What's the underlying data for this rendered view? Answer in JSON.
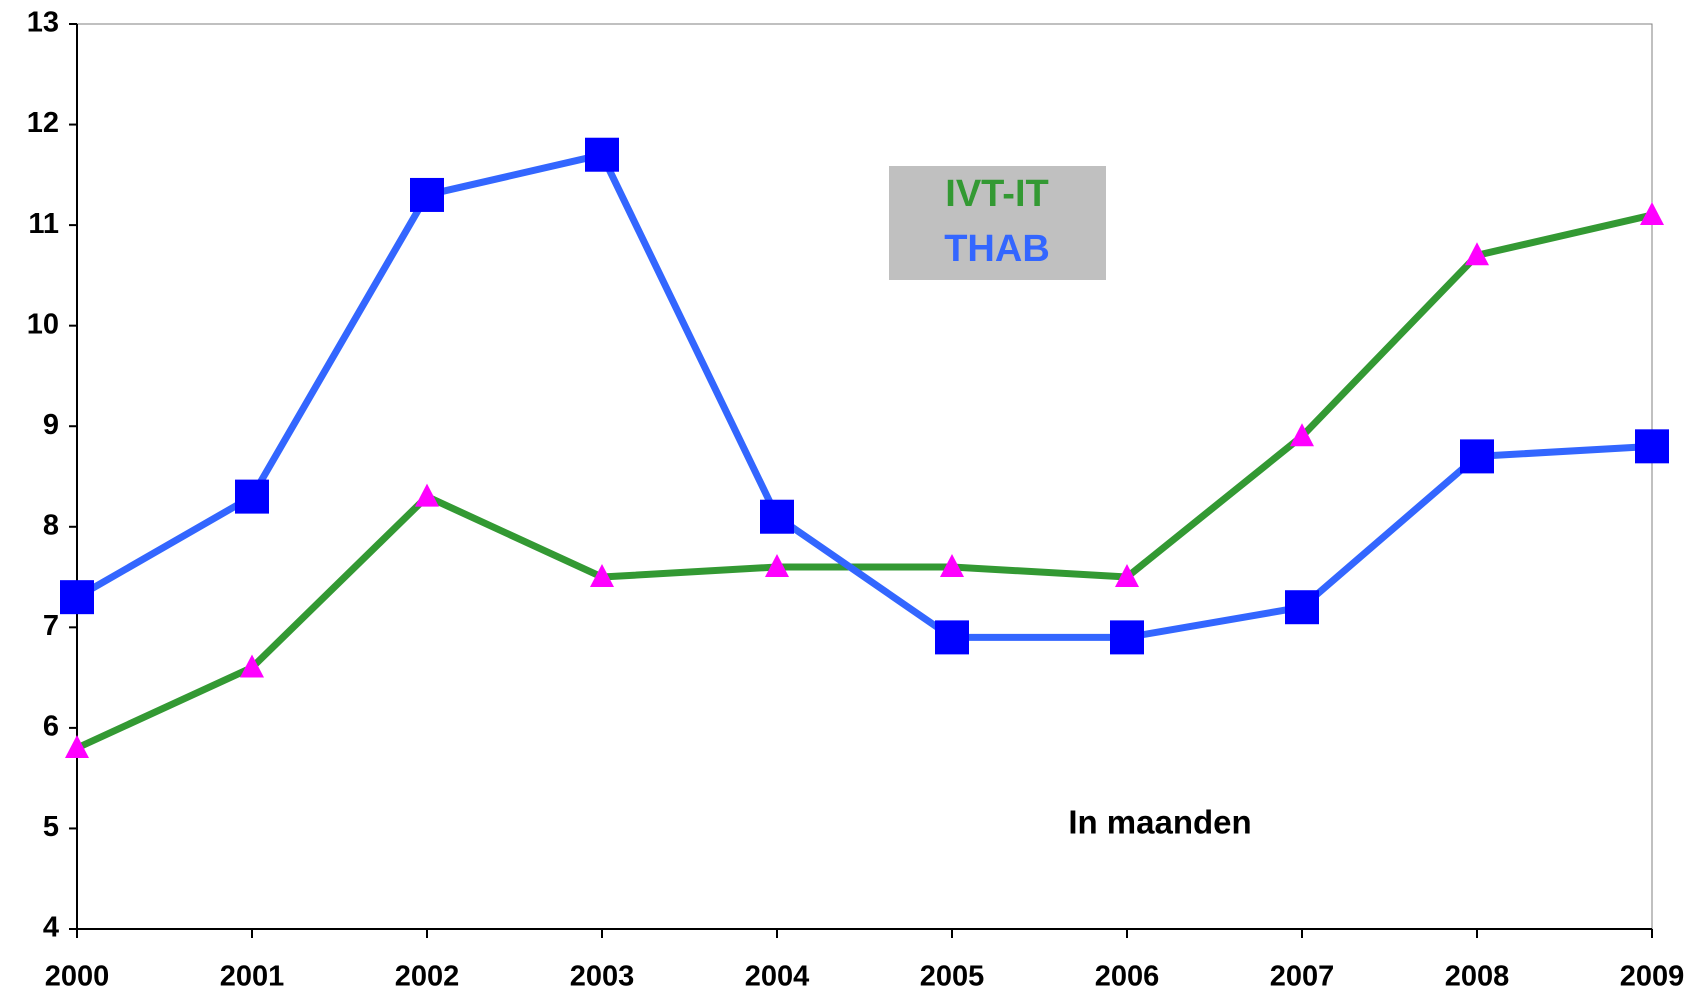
{
  "chart_data": {
    "type": "line",
    "categories": [
      "2000",
      "2001",
      "2002",
      "2003",
      "2004",
      "2005",
      "2006",
      "2007",
      "2008",
      "2009"
    ],
    "series": [
      {
        "name": "IVT-IT",
        "color": "#339933",
        "marker_color": "#ff00ff",
        "marker": "triangle",
        "values": [
          5.8,
          6.6,
          8.3,
          7.5,
          7.6,
          7.6,
          7.5,
          8.9,
          10.7,
          11.1
        ]
      },
      {
        "name": "THAB",
        "color": "#3366ff",
        "marker_color": "#0000ff",
        "marker": "square",
        "values": [
          7.3,
          8.3,
          11.3,
          11.7,
          8.1,
          6.9,
          6.9,
          7.2,
          8.7,
          8.8
        ]
      }
    ],
    "annotation": "In maanden",
    "ylim": [
      4,
      13
    ],
    "yticks": [
      4,
      5,
      6,
      7,
      8,
      9,
      10,
      11,
      12,
      13
    ],
    "grid": false,
    "legend_position": "top-center"
  }
}
